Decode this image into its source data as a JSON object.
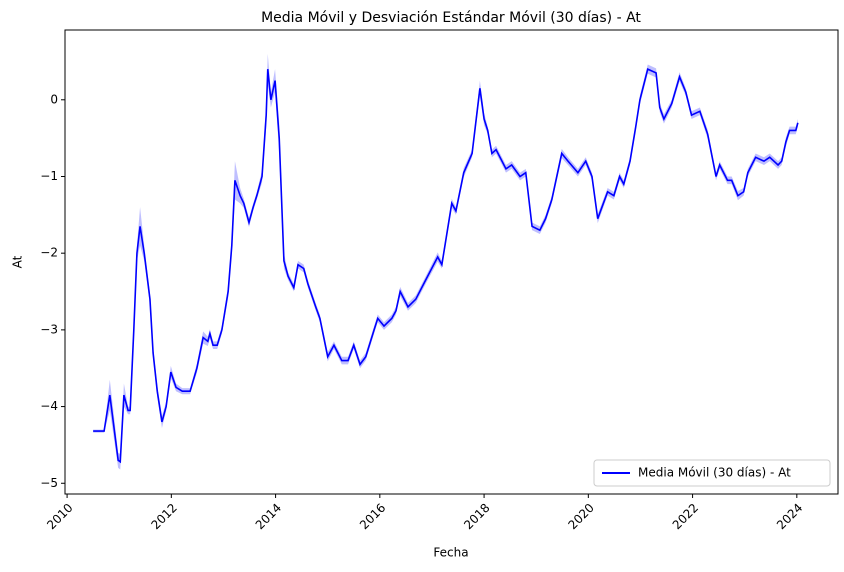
{
  "chart_data": {
    "type": "line",
    "title": "Media Móvil y Desviación Estándar Móvil (30 días) - At",
    "xlabel": "Fecha",
    "ylabel": "At",
    "x": [
      2010.5,
      2010.71,
      2010.82,
      2010.98,
      2011.02,
      2011.09,
      2011.17,
      2011.21,
      2011.28,
      2011.34,
      2011.4,
      2011.48,
      2011.59,
      2011.65,
      2011.73,
      2011.82,
      2011.9,
      2011.99,
      2012.09,
      2012.21,
      2012.36,
      2012.49,
      2012.61,
      2012.7,
      2012.74,
      2012.8,
      2012.88,
      2012.97,
      2013.09,
      2013.16,
      2013.22,
      2013.32,
      2013.39,
      2013.49,
      2013.57,
      2013.64,
      2013.74,
      2013.82,
      2013.85,
      2013.91,
      2013.99,
      2014.07,
      2014.16,
      2014.24,
      2014.35,
      2014.43,
      2014.54,
      2014.62,
      2014.77,
      2014.85,
      2015.0,
      2015.12,
      2015.27,
      2015.39,
      2015.5,
      2015.62,
      2015.73,
      2015.89,
      2015.96,
      2016.08,
      2016.23,
      2016.31,
      2016.39,
      2016.54,
      2016.69,
      2016.88,
      2017.11,
      2017.19,
      2017.38,
      2017.46,
      2017.61,
      2017.77,
      2017.92,
      2018.0,
      2018.07,
      2018.15,
      2018.23,
      2018.42,
      2018.53,
      2018.69,
      2018.8,
      2018.92,
      2019.07,
      2019.18,
      2019.3,
      2019.49,
      2019.61,
      2019.8,
      2019.95,
      2020.07,
      2020.18,
      2020.37,
      2020.49,
      2020.6,
      2020.68,
      2020.8,
      2020.91,
      2020.99,
      2021.14,
      2021.3,
      2021.37,
      2021.45,
      2021.6,
      2021.75,
      2021.87,
      2021.98,
      2022.14,
      2022.29,
      2022.45,
      2022.52,
      2022.67,
      2022.75,
      2022.87,
      2022.98,
      2023.06,
      2023.21,
      2023.37,
      2023.48,
      2023.64,
      2023.71,
      2023.79,
      2023.86,
      2023.98,
      2024.02
    ],
    "series": [
      {
        "name": "Media Móvil (30 días) - At",
        "color": "#0000ff",
        "values": [
          -4.32,
          -4.32,
          -3.85,
          -4.7,
          -4.72,
          -3.85,
          -4.05,
          -4.05,
          -3.0,
          -2.0,
          -1.65,
          -2.0,
          -2.6,
          -3.3,
          -3.8,
          -4.2,
          -4.0,
          -3.55,
          -3.75,
          -3.8,
          -3.8,
          -3.5,
          -3.1,
          -3.15,
          -3.05,
          -3.2,
          -3.2,
          -3.0,
          -2.5,
          -1.9,
          -1.05,
          -1.25,
          -1.35,
          -1.6,
          -1.4,
          -1.25,
          -1.0,
          -0.2,
          0.4,
          0.0,
          0.25,
          -0.5,
          -2.1,
          -2.3,
          -2.45,
          -2.15,
          -2.2,
          -2.4,
          -2.7,
          -2.85,
          -3.35,
          -3.2,
          -3.4,
          -3.4,
          -3.2,
          -3.45,
          -3.35,
          -3.0,
          -2.85,
          -2.95,
          -2.85,
          -2.75,
          -2.5,
          -2.7,
          -2.6,
          -2.35,
          -2.05,
          -2.15,
          -1.35,
          -1.45,
          -0.95,
          -0.7,
          0.15,
          -0.25,
          -0.4,
          -0.7,
          -0.65,
          -0.9,
          -0.85,
          -1.0,
          -0.95,
          -1.65,
          -1.7,
          -1.55,
          -1.3,
          -0.7,
          -0.8,
          -0.95,
          -0.8,
          -1.0,
          -1.55,
          -1.2,
          -1.25,
          -1.0,
          -1.1,
          -0.8,
          -0.35,
          0.0,
          0.4,
          0.35,
          -0.1,
          -0.25,
          -0.05,
          0.3,
          0.1,
          -0.2,
          -0.15,
          -0.45,
          -1.0,
          -0.85,
          -1.05,
          -1.05,
          -1.25,
          -1.2,
          -0.95,
          -0.75,
          -0.8,
          -0.75,
          -0.85,
          -0.8,
          -0.55,
          -0.4,
          -0.4,
          -0.3
        ],
        "std": [
          0.02,
          0.02,
          0.2,
          0.1,
          0.1,
          0.15,
          0.05,
          0.05,
          0.1,
          0.1,
          0.25,
          0.1,
          0.08,
          0.08,
          0.08,
          0.08,
          0.06,
          0.08,
          0.05,
          0.04,
          0.04,
          0.06,
          0.08,
          0.06,
          0.06,
          0.05,
          0.05,
          0.05,
          0.08,
          0.1,
          0.25,
          0.1,
          0.06,
          0.06,
          0.05,
          0.05,
          0.08,
          0.15,
          0.2,
          0.1,
          0.15,
          0.2,
          0.1,
          0.05,
          0.05,
          0.05,
          0.05,
          0.05,
          0.05,
          0.05,
          0.06,
          0.05,
          0.05,
          0.05,
          0.05,
          0.05,
          0.05,
          0.05,
          0.05,
          0.05,
          0.05,
          0.05,
          0.06,
          0.05,
          0.05,
          0.05,
          0.06,
          0.05,
          0.06,
          0.05,
          0.06,
          0.05,
          0.1,
          0.08,
          0.05,
          0.05,
          0.05,
          0.05,
          0.05,
          0.05,
          0.05,
          0.05,
          0.05,
          0.05,
          0.05,
          0.06,
          0.05,
          0.05,
          0.05,
          0.05,
          0.06,
          0.05,
          0.05,
          0.05,
          0.05,
          0.05,
          0.05,
          0.06,
          0.06,
          0.06,
          0.06,
          0.06,
          0.05,
          0.06,
          0.05,
          0.05,
          0.05,
          0.06,
          0.05,
          0.05,
          0.05,
          0.05,
          0.06,
          0.05,
          0.05,
          0.05,
          0.05,
          0.05,
          0.05,
          0.05,
          0.06,
          0.05,
          0.05,
          0.05
        ]
      }
    ],
    "xlim": [
      2009.96,
      2024.79
    ],
    "xticks": [
      2010,
      2012,
      2014,
      2016,
      2018,
      2020,
      2022,
      2024
    ],
    "ylim": [
      -5.14,
      0.91
    ],
    "yticks": [
      {
        "value": -5,
        "label": "−5"
      },
      {
        "value": -4,
        "label": "−4"
      },
      {
        "value": -3,
        "label": "−3"
      },
      {
        "value": -2,
        "label": "−2"
      },
      {
        "value": -1,
        "label": "−1"
      },
      0
    ],
    "legend": "lower right"
  }
}
